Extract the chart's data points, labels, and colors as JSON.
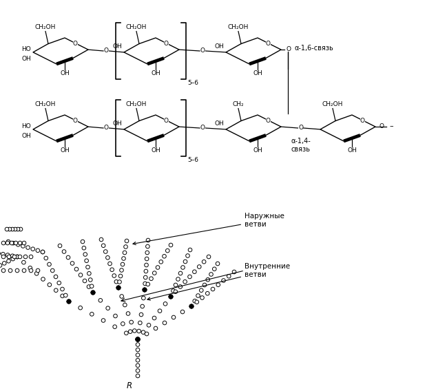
{
  "background_color": "#ffffff",
  "label_outer": "Наружные\nветви",
  "label_inner": "Внутренние\nветви",
  "label_R": "R",
  "label_alpha16": "α-1,6-связь",
  "label_alpha14": "α-1,4-\nсвязь",
  "bead_r": 2.8,
  "bead_lw": 0.7
}
